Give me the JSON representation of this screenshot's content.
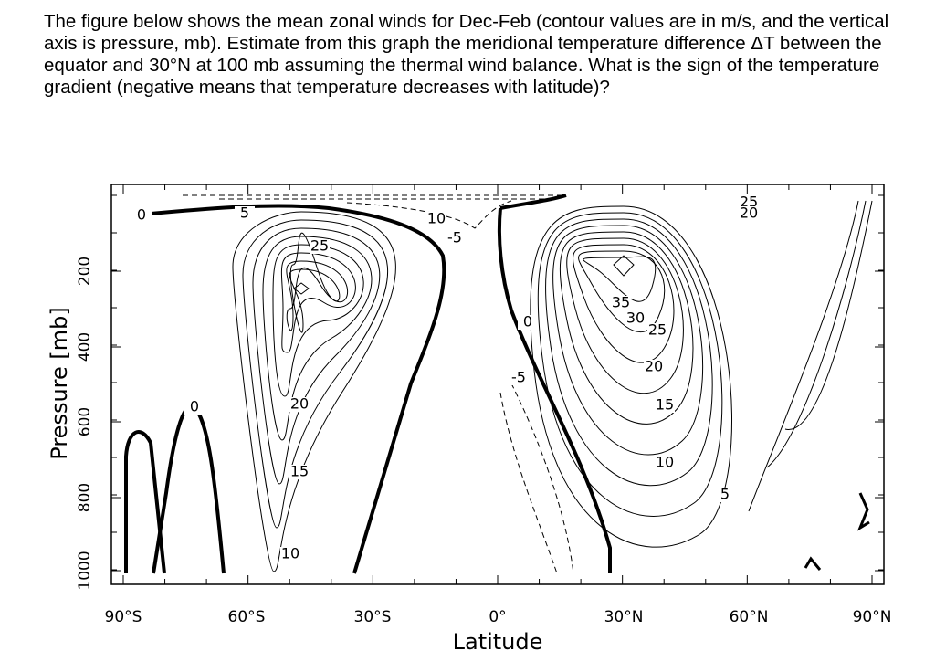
{
  "question": {
    "text": "The figure below shows the mean zonal winds for Dec-Feb (contour values are in m/s, and the vertical axis is pressure, mb). Estimate from this graph the meridional temperature difference ΔT between the equator and 30°N at 100 mb assuming the thermal wind balance. What is the sign of the temperature gradient (negative means that temperature decreases with latitude)?"
  },
  "figure": {
    "x_axis_label": "Latitude",
    "y_axis_label": "Pressure [mb]",
    "x_ticks": [
      "90°S",
      "60°S",
      "30°S",
      "0°",
      "30°N",
      "60°N",
      "90°N"
    ],
    "y_ticks": [
      "200",
      "400",
      "600",
      "800",
      "1000"
    ],
    "contour_labels": [
      "0",
      "5",
      "25",
      "20",
      "15",
      "10",
      "0",
      "10",
      "-5",
      "0",
      "-5",
      "35",
      "30",
      "25",
      "20",
      "15",
      "10",
      "5",
      "25",
      "20"
    ]
  }
}
